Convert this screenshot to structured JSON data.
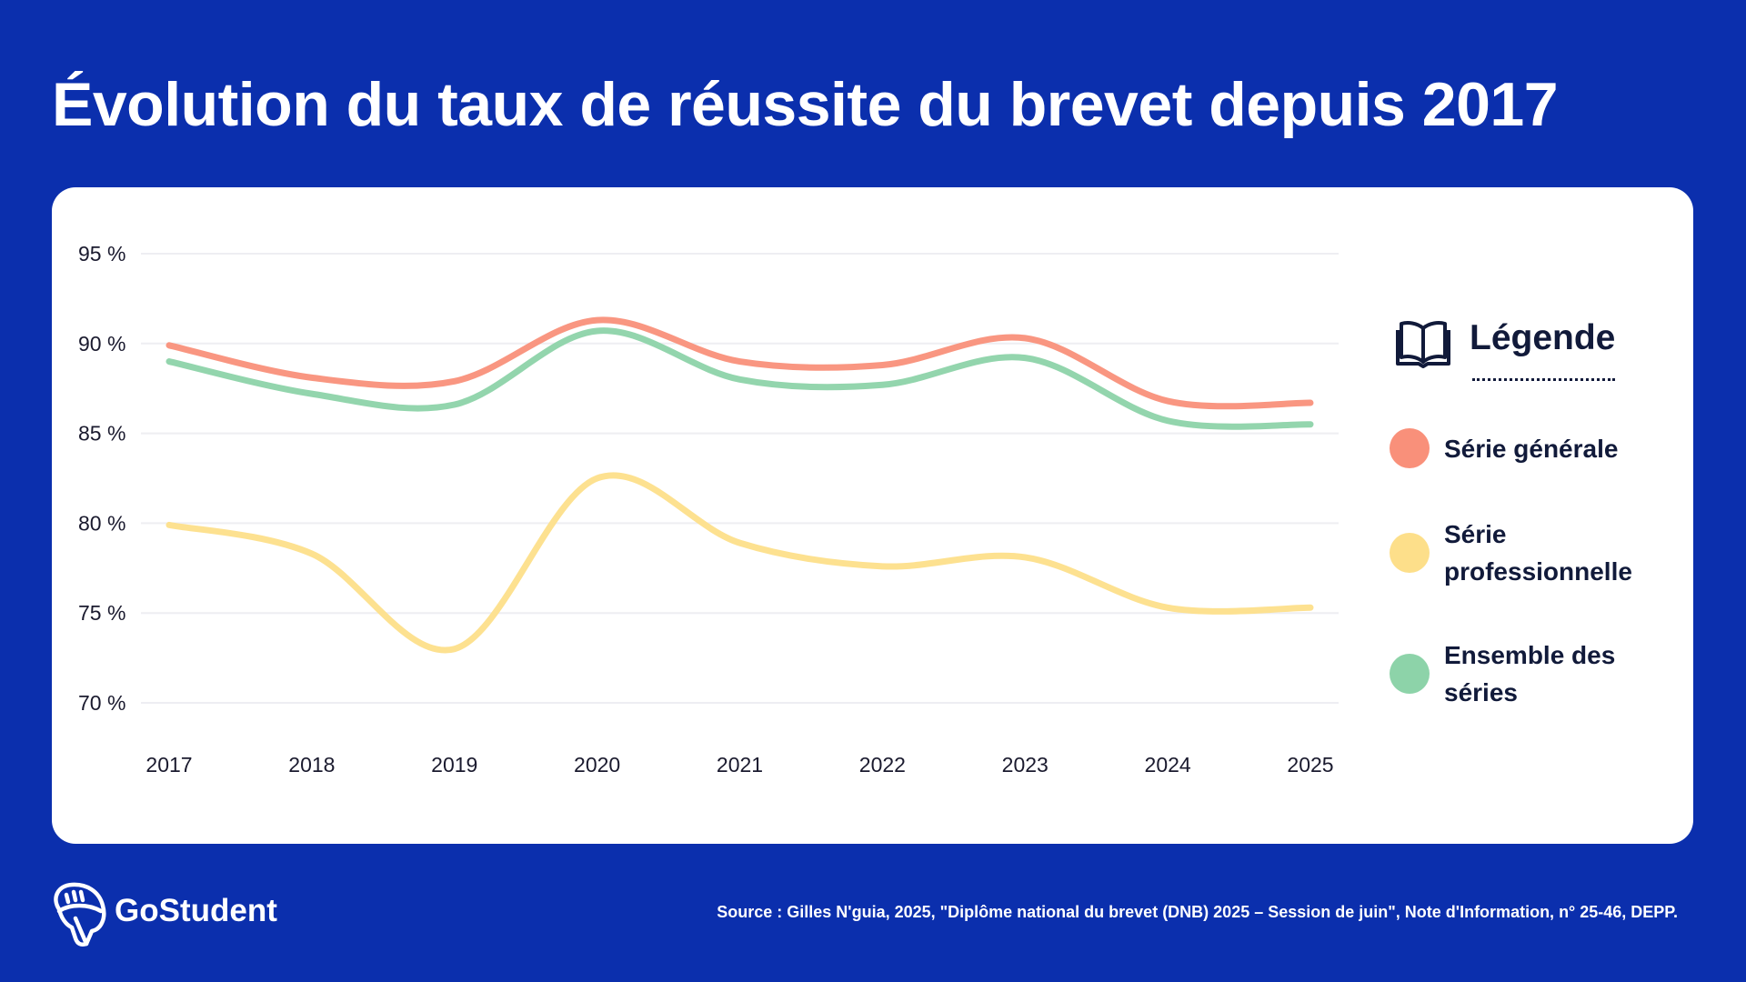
{
  "title": "Évolution du taux de réussite du brevet depuis 2017",
  "legend": {
    "title": "Légende",
    "icon": "open-book-icon",
    "items": [
      "Série générale",
      "Série professionnelle",
      "Ensemble des séries"
    ]
  },
  "brand": "GoStudent",
  "source": "Source : Gilles N'guia, 2025, \"Diplôme national du brevet (DNB) 2025 – Session de juin\", Note d'Information, n° 25-46, DEPP.",
  "colors": {
    "background": "#0b2fad",
    "general": "#f9907a",
    "pro": "#fddf8a",
    "ensemble": "#8dd3a9"
  },
  "chart_data": {
    "type": "line",
    "title": "Évolution du taux de réussite du brevet depuis 2017",
    "x": [
      "2017",
      "2018",
      "2019",
      "2020",
      "2021",
      "2022",
      "2023",
      "2024",
      "2025"
    ],
    "yticks": [
      "70 %",
      "75 %",
      "80 %",
      "85 %",
      "90 %",
      "95 %"
    ],
    "ylim": [
      70,
      95
    ],
    "grid": true,
    "legend_position": "right",
    "series": [
      {
        "name": "Série générale",
        "color": "#f9907a",
        "values": [
          89.9,
          88.1,
          87.9,
          91.3,
          89.0,
          88.8,
          90.3,
          86.8,
          86.7
        ]
      },
      {
        "name": "Série professionnelle",
        "color": "#fddf8a",
        "values": [
          79.9,
          78.3,
          73.0,
          82.5,
          78.9,
          77.6,
          78.1,
          75.3,
          75.3
        ]
      },
      {
        "name": "Ensemble des séries",
        "color": "#8dd3a9",
        "values": [
          89.0,
          87.2,
          86.6,
          90.7,
          88.0,
          87.7,
          89.2,
          85.7,
          85.5
        ]
      }
    ]
  }
}
